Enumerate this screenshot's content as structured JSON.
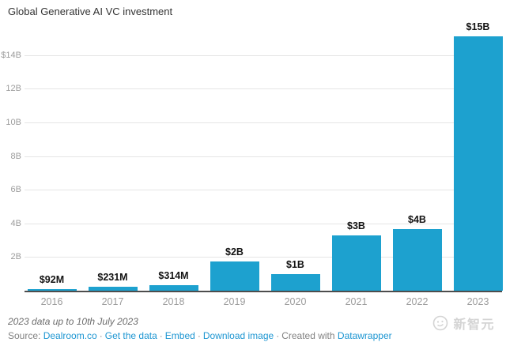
{
  "header": {
    "title": "Global Generative AI VC investment"
  },
  "chart_data": {
    "type": "bar",
    "title": "Global Generative AI VC investment",
    "categories": [
      "2016",
      "2017",
      "2018",
      "2019",
      "2020",
      "2021",
      "2022",
      "2023"
    ],
    "values_billions": [
      0.092,
      0.231,
      0.314,
      1.75,
      0.98,
      3.3,
      3.65,
      15.1
    ],
    "value_labels": [
      "$92M",
      "$231M",
      "$314M",
      "$2B",
      "$1B",
      "$3B",
      "$4B",
      "$15B"
    ],
    "xlabel": "",
    "ylabel": "",
    "ylim": [
      0,
      15.5
    ],
    "yticks": [
      {
        "value": 2,
        "label": "2B"
      },
      {
        "value": 4,
        "label": "4B"
      },
      {
        "value": 6,
        "label": "6B"
      },
      {
        "value": 8,
        "label": "8B"
      },
      {
        "value": 10,
        "label": "10B"
      },
      {
        "value": 12,
        "label": "12B"
      },
      {
        "value": 14,
        "label": "$14B"
      }
    ],
    "grid": true,
    "legend": "none",
    "bar_color": "#1DA1CF"
  },
  "footer": {
    "note": "2023 data up to 10th July 2023",
    "source_label": "Source:",
    "link_dealroom": "Dealroom.co",
    "sep": "·",
    "link_get_data": "Get the data",
    "link_embed": "Embed",
    "link_download": "Download image",
    "created_with": "Created with",
    "link_datawrapper": "Datawrapper"
  },
  "watermark": {
    "text": "新智元"
  },
  "colors": {
    "bar": "#1DA1CF",
    "link": "#1D96D2",
    "gridline": "#e5e5e5",
    "axis_line": "#4d4d4d",
    "tick_text": "#9c9c9c",
    "watermark": "#d4d4d4"
  }
}
